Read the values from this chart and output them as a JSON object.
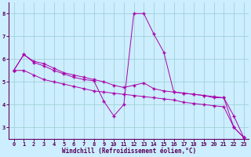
{
  "xlabel": "Windchill (Refroidissement éolien,°C)",
  "background_color": "#cceeff",
  "grid_color": "#99cccc",
  "line_color": "#aa00aa",
  "xlim": [
    -0.5,
    23.5
  ],
  "ylim": [
    2.5,
    8.5
  ],
  "xticks": [
    0,
    1,
    2,
    3,
    4,
    5,
    6,
    7,
    8,
    9,
    10,
    11,
    12,
    13,
    14,
    15,
    16,
    17,
    18,
    19,
    20,
    21,
    22,
    23
  ],
  "yticks": [
    3,
    4,
    5,
    6,
    7,
    8
  ],
  "series": [
    [
      5.5,
      5.5,
      5.3,
      5.1,
      5.0,
      4.9,
      4.8,
      4.7,
      4.6,
      4.55,
      4.5,
      4.45,
      4.4,
      4.35,
      4.3,
      4.25,
      4.2,
      4.1,
      4.05,
      4.0,
      3.95,
      3.9,
      3.0,
      2.55
    ],
    [
      5.5,
      6.2,
      5.9,
      5.8,
      5.6,
      5.4,
      5.3,
      5.2,
      5.1,
      5.0,
      4.85,
      4.75,
      4.85,
      4.95,
      4.7,
      4.6,
      4.55,
      4.5,
      4.45,
      4.4,
      4.35,
      4.3,
      3.0,
      2.55
    ],
    [
      5.5,
      6.2,
      5.85,
      5.7,
      5.5,
      5.35,
      5.2,
      5.1,
      5.05,
      4.15,
      3.5,
      4.0,
      8.0,
      8.0,
      7.1,
      6.3,
      4.55,
      4.5,
      4.45,
      4.4,
      4.3,
      4.3,
      3.5,
      2.55
    ]
  ]
}
